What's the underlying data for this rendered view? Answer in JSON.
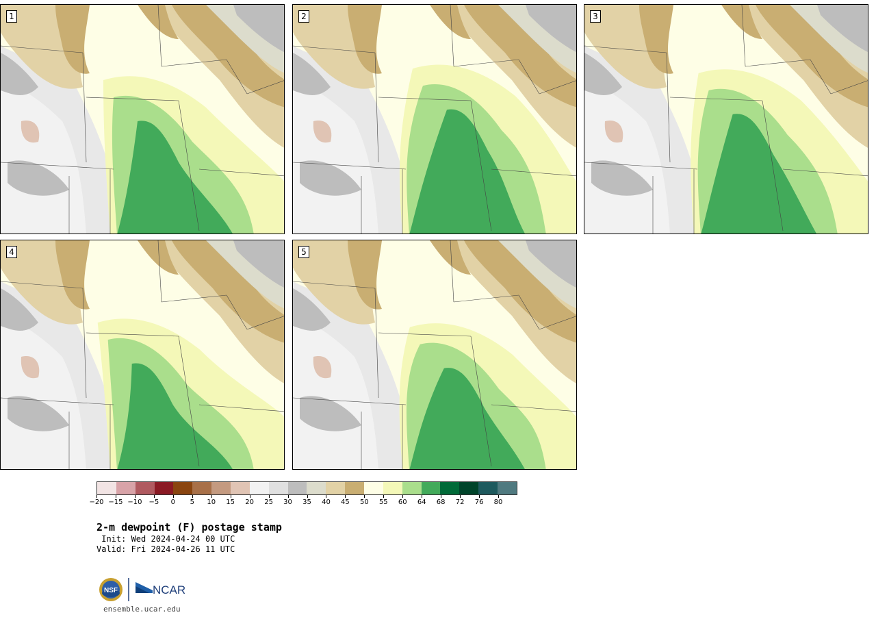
{
  "panels": [
    {
      "label": "1"
    },
    {
      "label": "2"
    },
    {
      "label": "3"
    },
    {
      "label": "4"
    },
    {
      "label": "5"
    }
  ],
  "colorbar": {
    "colors": [
      "#f2e4e4",
      "#d8a3a8",
      "#b05a60",
      "#8b1a24",
      "#8a4510",
      "#a87048",
      "#c49a80",
      "#e0c4b4",
      "#f2f2f2",
      "#e0e0e0",
      "#bdbdbd",
      "#dcdccc",
      "#e2d2a6",
      "#c9ae72",
      "#fefee6",
      "#f4f8b8",
      "#aade8c",
      "#42aa5a",
      "#006a38",
      "#00442a",
      "#1e5a5e",
      "#507a80"
    ],
    "tick_labels": [
      "−20",
      "−15",
      "−10",
      "−5",
      "0",
      "5",
      "10",
      "15",
      "20",
      "25",
      "30",
      "35",
      "40",
      "45",
      "50",
      "55",
      "60",
      "64",
      "68",
      "72",
      "76",
      "80"
    ]
  },
  "title": "2-m dewpoint (F) postage stamp",
  "init_text": " Init: Wed 2024-04-24 00 UTC",
  "valid_text": "Valid: Fri 2024-04-26 11 UTC",
  "logos": {
    "nsf": "NSF",
    "ncar": "NCAR"
  },
  "site": "ensemble.ucar.edu"
}
